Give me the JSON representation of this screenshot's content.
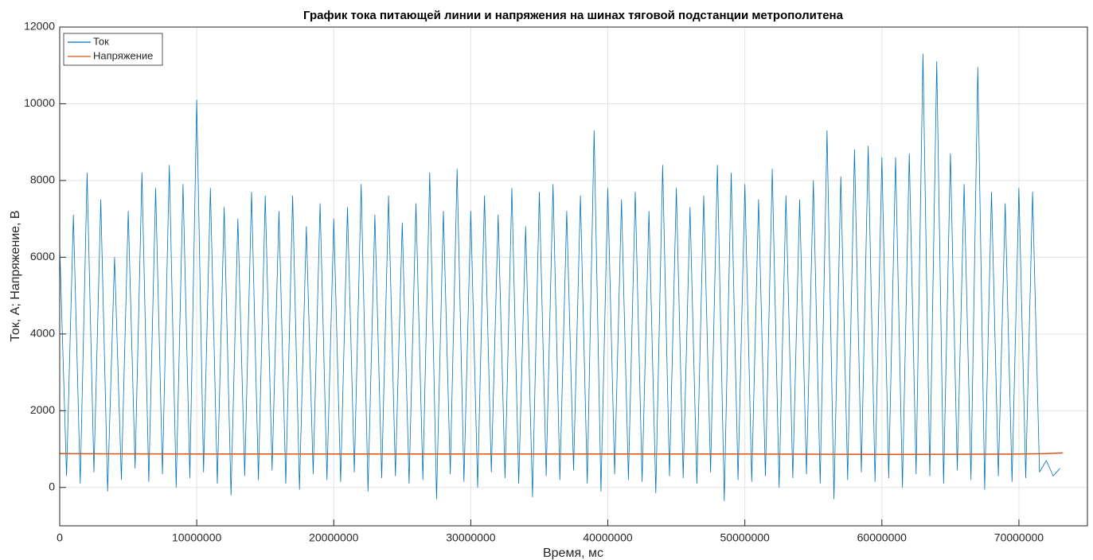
{
  "chart_data": {
    "type": "line",
    "title": "График тока питающей линии и напряжения на шинах тяговой подстанции метрополитена",
    "x_label": "Время, мс",
    "y_label": "Ток, А; Напряжение, В",
    "xlim": [
      0,
      75000000
    ],
    "ylim": [
      -1000,
      12000
    ],
    "xticks": [
      0,
      10000000,
      20000000,
      30000000,
      40000000,
      50000000,
      60000000,
      70000000
    ],
    "yticks": [
      0,
      2000,
      4000,
      6000,
      8000,
      10000,
      12000
    ],
    "grid": true,
    "legend": "upper left",
    "series": [
      {
        "name": "Ток",
        "color": "#0072bd",
        "x": [
          0,
          500000,
          1000000,
          1500000,
          2000000,
          2500000,
          3000000,
          3500000,
          4000000,
          4500000,
          5000000,
          5500000,
          6000000,
          6500000,
          7000000,
          7500000,
          8000000,
          8500000,
          9000000,
          9500000,
          10000000,
          10500000,
          11000000,
          11500000,
          12000000,
          12500000,
          13000000,
          13500000,
          14000000,
          14500000,
          15000000,
          15500000,
          16000000,
          16500000,
          17000000,
          17500000,
          18000000,
          18500000,
          19000000,
          19500000,
          20000000,
          20500000,
          21000000,
          21500000,
          22000000,
          22500000,
          23000000,
          23500000,
          24000000,
          24500000,
          25000000,
          25500000,
          26000000,
          26500000,
          27000000,
          27500000,
          28000000,
          28500000,
          29000000,
          29500000,
          30000000,
          30500000,
          31000000,
          31500000,
          32000000,
          32500000,
          33000000,
          33500000,
          34000000,
          34500000,
          35000000,
          35500000,
          36000000,
          36500000,
          37000000,
          37500000,
          38000000,
          38500000,
          39000000,
          39500000,
          40000000,
          40500000,
          41000000,
          41500000,
          42000000,
          42500000,
          43000000,
          43500000,
          44000000,
          44500000,
          45000000,
          45500000,
          46000000,
          46500000,
          47000000,
          47500000,
          48000000,
          48500000,
          49000000,
          49500000,
          50000000,
          50500000,
          51000000,
          51500000,
          52000000,
          52500000,
          53000000,
          53500000,
          54000000,
          54500000,
          55000000,
          55500000,
          56000000,
          56500000,
          57000000,
          57500000,
          58000000,
          58500000,
          59000000,
          59500000,
          60000000,
          60500000,
          61000000,
          61500000,
          62000000,
          62500000,
          63000000,
          63500000,
          64000000,
          64500000,
          65000000,
          65500000,
          66000000,
          66500000,
          67000000,
          67500000,
          68000000,
          68500000,
          69000000,
          69500000,
          70000000,
          70500000,
          71000000,
          71500000,
          72000000,
          72500000,
          73000000
        ],
        "values": [
          6300,
          300,
          7100,
          100,
          8200,
          400,
          7500,
          -100,
          6000,
          200,
          7200,
          500,
          8200,
          150,
          7800,
          350,
          8400,
          0,
          7900,
          250,
          10100,
          400,
          7800,
          100,
          7300,
          -200,
          7000,
          300,
          7700,
          200,
          7600,
          450,
          7200,
          100,
          7600,
          -50,
          6800,
          350,
          7400,
          200,
          7000,
          150,
          7300,
          400,
          7900,
          -100,
          7100,
          250,
          7600,
          300,
          6900,
          100,
          7400,
          200,
          8200,
          -300,
          7200,
          350,
          8300,
          150,
          7200,
          0,
          7600,
          400,
          7100,
          250,
          7800,
          100,
          6800,
          -250,
          7700,
          300,
          7900,
          200,
          7200,
          450,
          7600,
          100,
          9300,
          -100,
          7800,
          350,
          7500,
          200,
          7700,
          150,
          7200,
          -150,
          8400,
          300,
          7800,
          250,
          7300,
          100,
          7600,
          400,
          8400,
          -350,
          8200,
          200,
          7900,
          150,
          7500,
          300,
          8300,
          0,
          7600,
          250,
          7500,
          350,
          8000,
          100,
          9300,
          -300,
          8100,
          200,
          8800,
          400,
          8900,
          150,
          8600,
          250,
          8600,
          0,
          8700,
          350,
          11300,
          300,
          11100,
          100,
          8700,
          450,
          7900,
          200,
          10950,
          -50,
          7700,
          300,
          7400,
          150,
          7800,
          250,
          7700,
          400,
          700,
          300,
          500
        ]
      },
      {
        "name": "Напряжение",
        "color": "#d95319",
        "x": [
          0,
          10000000,
          20000000,
          30000000,
          40000000,
          50000000,
          60000000,
          70000000,
          72000000,
          73200000
        ],
        "values": [
          880,
          870,
          870,
          870,
          870,
          870,
          860,
          870,
          880,
          900
        ]
      }
    ]
  }
}
